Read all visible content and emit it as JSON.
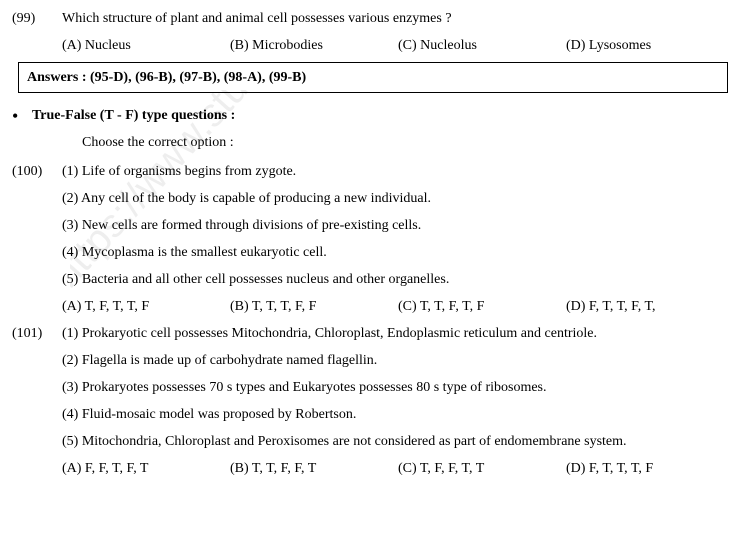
{
  "q99": {
    "num": "(99)",
    "text": "Which structure of plant and animal cell possesses various enzymes ?",
    "options": {
      "a": "(A) Nucleus",
      "b": "(B) Microbodies",
      "c": "(C) Nucleolus",
      "d": "(D) Lysosomes"
    }
  },
  "answers_box": "Answers : (95-D), (96-B), (97-B), (98-A), (99-B)",
  "section": {
    "bullet": "•",
    "title": "True-False (T - F) type questions :",
    "instruction": "Choose the correct option :"
  },
  "q100": {
    "num": "(100)",
    "stmts": {
      "s1": "(1) Life of organisms begins from zygote.",
      "s2": "(2) Any cell of the body is capable of producing a new individual.",
      "s3": "(3) New cells are formed through divisions of pre-existing cells.",
      "s4": "(4) Mycoplasma is the smallest eukaryotic cell.",
      "s5": "(5) Bacteria and all other cell possesses nucleus and other organelles."
    },
    "options": {
      "a": "(A) T, F, T, T, F",
      "b": "(B) T, T, T, F, F",
      "c": "(C) T, T, F, T, F",
      "d": "(D) F, T, T, F, T,"
    }
  },
  "q101": {
    "num": "(101)",
    "stmts": {
      "s1": "(1) Prokaryotic cell possesses Mitochondria, Chloroplast, Endoplasmic reticulum and centriole.",
      "s2": "(2) Flagella is made up of carbohydrate named flagellin.",
      "s3": "(3) Prokaryotes possesses 70 s types and Eukaryotes possesses 80 s type of ribosomes.",
      "s4": "(4) Fluid-mosaic model was proposed by Robertson.",
      "s5": "(5) Mitochondria, Chloroplast and Peroxisomes are not considered as part of endomembrane system."
    },
    "options": {
      "a": "(A) F, F, T, F, T",
      "b": "(B) T, T, F, F, T",
      "c": "(C) T, F, F, T, T",
      "d": "(D) F, T, T, T, F"
    }
  },
  "watermark_text": "https://www.stu"
}
